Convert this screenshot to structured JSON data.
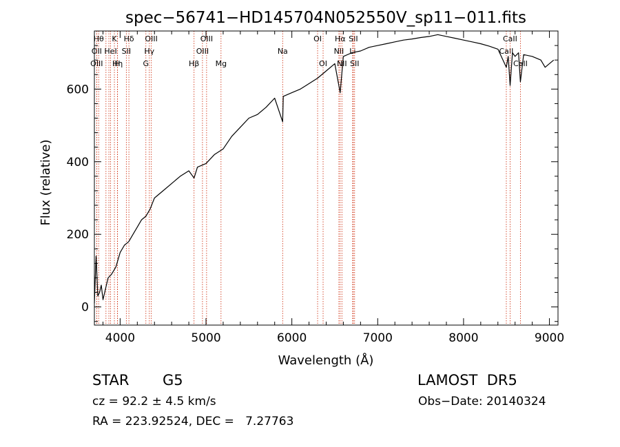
{
  "chart_data": {
    "type": "line",
    "title": "spec−56741−HD145704N052550V_sp11−011.fits",
    "xlabel": "Wavelength (Å)",
    "ylabel": "Flux (relative)",
    "xlim": [
      3700,
      9100
    ],
    "ylim": [
      -50,
      760
    ],
    "x_ticks": [
      4000,
      5000,
      6000,
      7000,
      8000,
      9000
    ],
    "y_ticks": [
      0,
      200,
      400,
      600
    ],
    "grid": false,
    "line_color": "#000000",
    "marker_color": "#cc2200",
    "series": [
      {
        "x": [
          3700,
          3720,
          3740,
          3760,
          3780,
          3800,
          3830,
          3860,
          3900,
          3950,
          4000,
          4050,
          4100,
          4150,
          4200,
          4250,
          4300,
          4350,
          4400,
          4500,
          4600,
          4700,
          4800,
          4861,
          4900,
          5000,
          5100,
          5200,
          5300,
          5400,
          5500,
          5600,
          5700,
          5800,
          5893,
          5900,
          6000,
          6100,
          6200,
          6300,
          6400,
          6500,
          6563,
          6600,
          6700,
          6800,
          6900,
          7000,
          7100,
          7200,
          7300,
          7400,
          7500,
          7600,
          7700,
          7800,
          7900,
          8000,
          8100,
          8200,
          8300,
          8400,
          8498,
          8520,
          8542,
          8570,
          8600,
          8640,
          8662,
          8700,
          8800,
          8900,
          8950,
          9000,
          9050
        ],
        "y": [
          10,
          140,
          30,
          40,
          60,
          20,
          50,
          80,
          90,
          110,
          150,
          170,
          180,
          200,
          220,
          240,
          250,
          270,
          300,
          320,
          340,
          360,
          375,
          355,
          385,
          395,
          420,
          435,
          470,
          495,
          520,
          530,
          550,
          575,
          510,
          580,
          590,
          600,
          615,
          630,
          650,
          670,
          590,
          690,
          700,
          705,
          715,
          720,
          725,
          730,
          735,
          738,
          742,
          745,
          750,
          745,
          740,
          735,
          730,
          725,
          718,
          710,
          660,
          690,
          610,
          700,
          690,
          700,
          620,
          695,
          690,
          680,
          660,
          670,
          680
        ]
      }
    ],
    "line_markers": [
      {
        "wave": 3750,
        "label": "Hθ",
        "row": 0
      },
      {
        "wave": 3727,
        "label": "OII",
        "row": 1
      },
      {
        "wave": 3727,
        "label": "OIII",
        "row": 2
      },
      {
        "wave": 3835,
        "label": "",
        "row": 0
      },
      {
        "wave": 3869,
        "label": "",
        "row": 0
      },
      {
        "wave": 3889,
        "label": "HeI",
        "row": 1
      },
      {
        "wave": 3933,
        "label": "K",
        "row": 0
      },
      {
        "wave": 3970,
        "label": "Hη",
        "row": 2
      },
      {
        "wave": 3968,
        "label": "H",
        "row": 2
      },
      {
        "wave": 4072,
        "label": "SII",
        "row": 1
      },
      {
        "wave": 4102,
        "label": "Hδ",
        "row": 0
      },
      {
        "wave": 4300,
        "label": "G",
        "row": 2
      },
      {
        "wave": 4340,
        "label": "Hγ",
        "row": 1
      },
      {
        "wave": 4363,
        "label": "OIII",
        "row": 0
      },
      {
        "wave": 4861,
        "label": "Hβ",
        "row": 2
      },
      {
        "wave": 4959,
        "label": "OIII",
        "row": 1
      },
      {
        "wave": 5007,
        "label": "OIII",
        "row": 0
      },
      {
        "wave": 5175,
        "label": "Mg",
        "row": 2
      },
      {
        "wave": 5893,
        "label": "Na",
        "row": 1
      },
      {
        "wave": 6300,
        "label": "OI",
        "row": 0
      },
      {
        "wave": 6364,
        "label": "OI",
        "row": 2
      },
      {
        "wave": 6548,
        "label": "NII",
        "row": 1
      },
      {
        "wave": 6563,
        "label": "Hα",
        "row": 0
      },
      {
        "wave": 6583,
        "label": "NII",
        "row": 2
      },
      {
        "wave": 6708,
        "label": "Li",
        "row": 1
      },
      {
        "wave": 6716,
        "label": "SII",
        "row": 0
      },
      {
        "wave": 6731,
        "label": "SII",
        "row": 2
      },
      {
        "wave": 8498,
        "label": "CaII",
        "row": 1
      },
      {
        "wave": 8542,
        "label": "CaII",
        "row": 0
      },
      {
        "wave": 8662,
        "label": "CaII",
        "row": 2
      }
    ]
  },
  "footer": {
    "object_type": "STAR",
    "subclass": "G5",
    "survey": "LAMOST  DR5",
    "cz": "cz = 92.2 ± 4.5 km/s",
    "obs_date": "Obs−Date: 20140324",
    "coords": "RA = 223.92524, DEC =   7.27763"
  }
}
